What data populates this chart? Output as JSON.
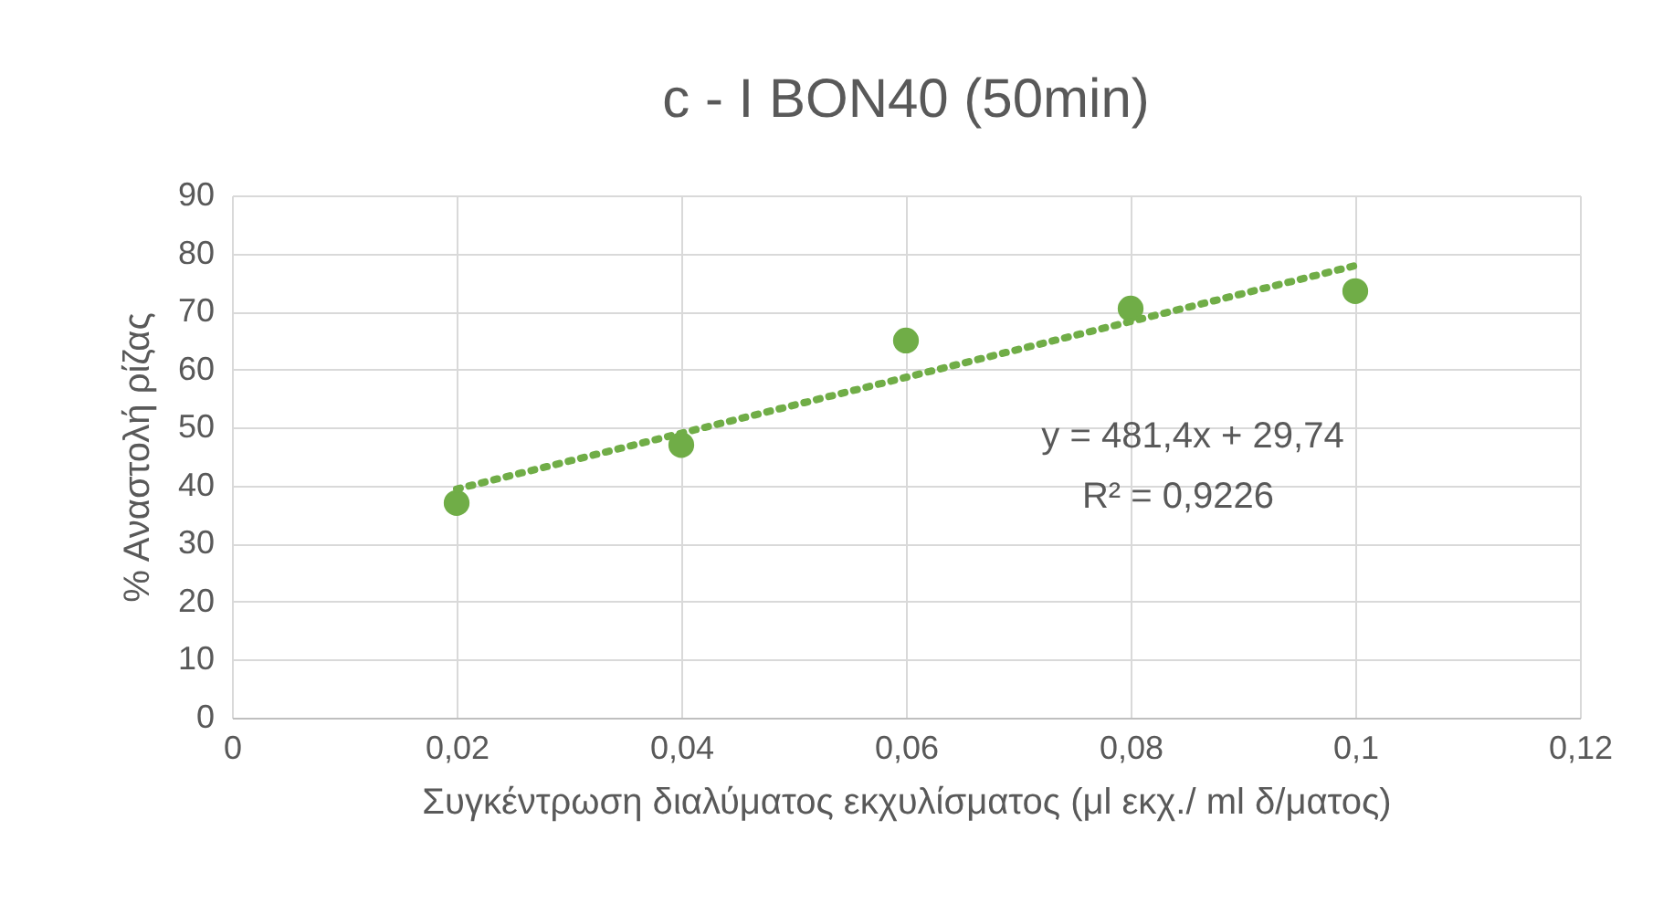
{
  "chart_data": {
    "type": "scatter",
    "title": "c - I BON40 (50min)",
    "xlabel": "Συγκέντρωση διαλύματος εκχυλίσματος (μl εκχ./ ml δ/ματος)",
    "ylabel": "% Αναστολή ρίζας",
    "x": [
      0.02,
      0.04,
      0.06,
      0.08,
      0.1
    ],
    "series": [
      {
        "color": "#70ad47",
        "values": [
          37,
          47,
          65,
          70.5,
          73.5
        ],
        "marker": "circle"
      },
      {
        "type": "line",
        "color": "#70ad47",
        "x": [
          0.02,
          0.1
        ],
        "values": [
          39.4,
          77.9
        ],
        "line_style": "dotted"
      }
    ],
    "xlim": [
      0,
      0.12
    ],
    "xticks": [
      0,
      {
        "value": 0.02,
        "label": "0,02"
      },
      {
        "value": 0.04,
        "label": "0,04"
      },
      {
        "value": 0.06,
        "label": "0,06"
      },
      {
        "value": 0.08,
        "label": "0,08"
      },
      {
        "value": 0.1,
        "label": "0,1"
      },
      {
        "value": 0.12,
        "label": "0,12"
      }
    ],
    "ylim": [
      0,
      90
    ],
    "yticks": [
      0,
      10,
      20,
      30,
      40,
      50,
      60,
      70,
      80,
      90
    ],
    "grid": true,
    "annotations": [
      "y = 481,4x + 29,74",
      "R² = 0,9226"
    ]
  }
}
